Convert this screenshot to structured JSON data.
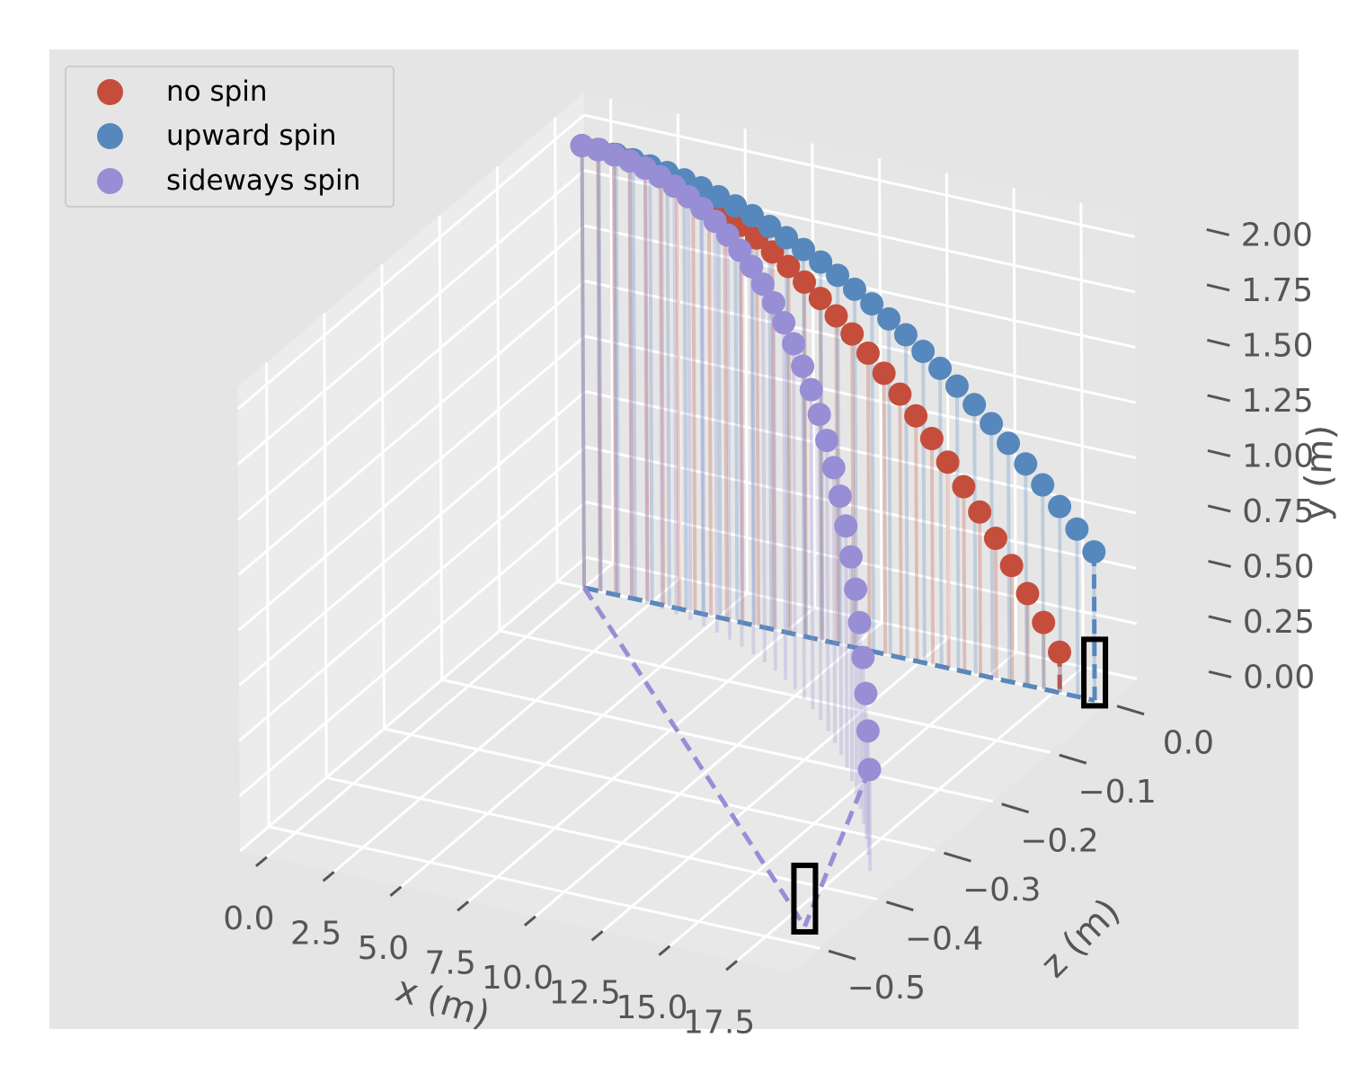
{
  "figure": {
    "background": "#ffffff",
    "axes_background": "#e5e5e5",
    "pane_color": "#ebebeb",
    "grid_color": "#ffffff",
    "tick_color": "#555555"
  },
  "legend": {
    "position": "upper left",
    "items": [
      {
        "label": "no spin",
        "color": "#c44e3b"
      },
      {
        "label": "upward spin",
        "color": "#5688bd"
      },
      {
        "label": "sideways spin",
        "color": "#988ed5"
      }
    ]
  },
  "chart_data": {
    "type": "scatter3d",
    "title": "",
    "xlabel": "x (m)",
    "ylabel": "y (m)",
    "zlabel": "z (m)",
    "x_ticks": [
      "0.0",
      "2.5",
      "5.0",
      "7.5",
      "10.0",
      "12.5",
      "15.0",
      "17.5"
    ],
    "y_ticks": [
      "0.00",
      "0.25",
      "0.50",
      "0.75",
      "1.00",
      "1.25",
      "1.50",
      "1.75",
      "2.00"
    ],
    "z_ticks": [
      "0.0",
      "−0.1",
      "−0.2",
      "−0.3",
      "−0.4",
      "−0.5"
    ],
    "xlim": [
      -1.0,
      19.5
    ],
    "ylim": [
      0.0,
      2.1
    ],
    "zlim": [
      -0.55,
      0.05
    ],
    "grid": true,
    "legend_position": "upper left",
    "series": [
      {
        "name": "no spin",
        "color": "#c44e3b",
        "x": [
          0.0,
          0.59,
          1.18,
          1.77,
          2.36,
          2.95,
          3.54,
          4.13,
          4.72,
          5.31,
          5.9,
          6.49,
          7.08,
          7.67,
          8.26,
          8.85,
          9.44,
          10.03,
          10.62,
          11.21,
          11.8,
          12.39,
          12.98,
          13.57,
          14.16,
          14.75,
          15.34,
          15.93,
          16.52,
          17.11,
          17.7
        ],
        "y": [
          2.0,
          1.998,
          1.992,
          1.982,
          1.968,
          1.95,
          1.927,
          1.901,
          1.871,
          1.836,
          1.798,
          1.756,
          1.709,
          1.659,
          1.604,
          1.546,
          1.483,
          1.417,
          1.346,
          1.271,
          1.192,
          1.11,
          1.023,
          0.932,
          0.837,
          0.738,
          0.635,
          0.528,
          0.417,
          0.302,
          0.183
        ],
        "z": [
          0,
          0,
          0,
          0,
          0,
          0,
          0,
          0,
          0,
          0,
          0,
          0,
          0,
          0,
          0,
          0,
          0,
          0,
          0,
          0,
          0,
          0,
          0,
          0,
          0,
          0,
          0,
          0,
          0,
          0,
          0
        ],
        "landing": {
          "x": 17.7,
          "y": 0.0,
          "z": 0.0
        }
      },
      {
        "name": "upward spin",
        "color": "#5688bd",
        "x": [
          0.0,
          0.63,
          1.27,
          1.9,
          2.53,
          3.17,
          3.8,
          4.43,
          5.07,
          5.7,
          6.33,
          6.97,
          7.6,
          8.23,
          8.87,
          9.5,
          10.13,
          10.77,
          11.4,
          12.03,
          12.67,
          13.3,
          13.93,
          14.57,
          15.2,
          15.83,
          16.47,
          17.1,
          17.73,
          18.37,
          19.0
        ],
        "y": [
          2.0,
          1.999,
          1.994,
          1.987,
          1.976,
          1.963,
          1.947,
          1.928,
          1.905,
          1.88,
          1.853,
          1.821,
          1.787,
          1.751,
          1.711,
          1.668,
          1.622,
          1.573,
          1.522,
          1.467,
          1.409,
          1.349,
          1.286,
          1.219,
          1.15,
          1.078,
          1.002,
          0.924,
          0.843,
          0.758,
          0.672
        ],
        "z": [
          0,
          0,
          0,
          0,
          0,
          0,
          0,
          0,
          0,
          0,
          0,
          0,
          0,
          0,
          0,
          0,
          0,
          0,
          0,
          0,
          0,
          0,
          0,
          0,
          0,
          0,
          0,
          0,
          0,
          0,
          0
        ],
        "landing": {
          "x": 19.0,
          "y": 0.0,
          "z": 0.0
        }
      },
      {
        "name": "sideways spin",
        "color": "#988ed5",
        "x": [
          0.0,
          0.61,
          1.22,
          1.83,
          2.44,
          3.05,
          3.66,
          4.27,
          4.88,
          5.49,
          6.1,
          6.71,
          7.32,
          7.93,
          8.54,
          9.15,
          9.76,
          10.37,
          10.98,
          11.59,
          12.2,
          12.81,
          13.42,
          14.03,
          14.64,
          15.25,
          15.86,
          16.47,
          17.08,
          17.69,
          18.3
        ],
        "y": [
          2.0,
          1.998,
          1.993,
          1.985,
          1.973,
          1.957,
          1.938,
          1.916,
          1.89,
          1.861,
          1.829,
          1.793,
          1.754,
          1.711,
          1.665,
          1.615,
          1.562,
          1.505,
          1.445,
          1.382,
          1.315,
          1.245,
          1.171,
          1.094,
          1.014,
          0.93,
          0.843,
          0.752,
          0.658,
          0.56,
          0.459
        ],
        "z": [
          0,
          -0.0002,
          -0.001,
          -0.0024,
          -0.0044,
          -0.0071,
          -0.0105,
          -0.0147,
          -0.0196,
          -0.0253,
          -0.0318,
          -0.0391,
          -0.0473,
          -0.0563,
          -0.0662,
          -0.077,
          -0.0887,
          -0.1014,
          -0.115,
          -0.1296,
          -0.1451,
          -0.1617,
          -0.1792,
          -0.1978,
          -0.2174,
          -0.238,
          -0.2596,
          -0.2823,
          -0.3061,
          -0.3309,
          -0.3568
        ],
        "landing": {
          "x": 18.3,
          "y": 0.0,
          "z": -0.47
        }
      }
    ],
    "annotations": [
      {
        "type": "black-rectangle-marker",
        "at": "upward spin landing"
      },
      {
        "type": "black-rectangle-marker",
        "at": "sideways spin landing"
      }
    ]
  }
}
